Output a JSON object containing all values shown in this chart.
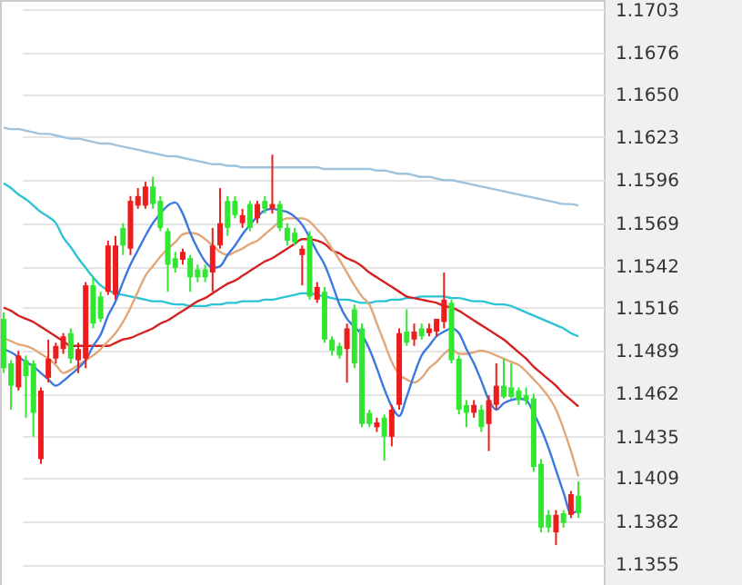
{
  "chart_data": {
    "type": "candlestick",
    "categories": [
      null,
      null,
      null,
      null,
      null,
      null,
      null,
      null,
      null,
      null,
      null,
      null,
      null,
      null,
      null,
      null,
      null,
      null,
      null,
      null,
      null,
      null,
      null,
      null,
      null,
      null,
      null,
      null,
      null,
      null,
      null,
      null,
      null,
      null,
      null,
      null,
      null,
      null,
      null,
      null,
      null,
      null,
      null,
      null,
      null,
      null,
      null,
      null,
      null,
      null,
      null,
      null,
      null,
      null,
      null,
      null,
      null,
      null,
      null,
      null,
      null,
      null,
      null,
      null,
      null,
      null,
      null,
      null,
      null,
      null,
      null,
      null,
      null,
      null,
      null,
      null,
      null,
      null
    ],
    "ohlc": [
      [
        1.1509,
        1.1513,
        1.1475,
        1.1478
      ],
      [
        1.1481,
        1.1483,
        1.1452,
        1.1467
      ],
      [
        1.1466,
        1.1489,
        1.1464,
        1.1486
      ],
      [
        1.1483,
        1.1486,
        1.1447,
        1.1473
      ],
      [
        1.1481,
        1.1483,
        1.1435,
        1.145
      ],
      [
        1.1421,
        1.1466,
        1.1418,
        1.1464
      ],
      [
        1.1472,
        1.1496,
        1.1469,
        1.1484
      ],
      [
        1.1484,
        1.1494,
        1.1481,
        1.1492
      ],
      [
        1.149,
        1.15,
        1.1487,
        1.1498
      ],
      [
        1.15,
        1.1503,
        1.1481,
        1.1484
      ],
      [
        1.1483,
        1.1494,
        1.1475,
        1.149
      ],
      [
        1.1484,
        1.1532,
        1.1478,
        1.153
      ],
      [
        1.153,
        1.1535,
        1.1503,
        1.1506
      ],
      [
        1.1523,
        1.1526,
        1.1507,
        1.1509
      ],
      [
        1.1526,
        1.1558,
        1.1524,
        1.1555
      ],
      [
        1.1524,
        1.1561,
        1.1521,
        1.1555
      ],
      [
        1.1566,
        1.1569,
        1.1549,
        1.1555
      ],
      [
        1.1553,
        1.1586,
        1.1549,
        1.1583
      ],
      [
        1.158,
        1.1591,
        1.1578,
        1.1586
      ],
      [
        1.158,
        1.1595,
        1.1578,
        1.1592
      ],
      [
        1.1592,
        1.1598,
        1.1578,
        1.1581
      ],
      [
        1.1583,
        1.1586,
        1.1564,
        1.1566
      ],
      [
        1.1564,
        1.1566,
        1.1526,
        1.1543
      ],
      [
        1.1547,
        1.1551,
        1.1538,
        1.1541
      ],
      [
        1.1546,
        1.1553,
        1.1543,
        1.1551
      ],
      [
        1.1547,
        1.1549,
        1.1526,
        1.1535
      ],
      [
        1.154,
        1.1543,
        1.1532,
        1.1535
      ],
      [
        1.154,
        1.1543,
        1.1532,
        1.1535
      ],
      [
        1.1538,
        1.1566,
        1.1526,
        1.1555
      ],
      [
        1.1555,
        1.1591,
        1.1553,
        1.1569
      ],
      [
        1.1583,
        1.1586,
        1.1561,
        1.1566
      ],
      [
        1.1583,
        1.1586,
        1.1572,
        1.1574
      ],
      [
        1.1569,
        1.1578,
        1.1566,
        1.1574
      ],
      [
        1.1581,
        1.1583,
        1.1564,
        1.1566
      ],
      [
        1.1572,
        1.1583,
        1.1569,
        1.1581
      ],
      [
        1.1583,
        1.1586,
        1.1575,
        1.1578
      ],
      [
        1.1578,
        1.1612,
        1.1575,
        1.1581
      ],
      [
        1.1581,
        1.1583,
        1.1564,
        1.1566
      ],
      [
        1.1566,
        1.1569,
        1.1555,
        1.1558
      ],
      [
        1.1563,
        1.1566,
        1.1555,
        1.1557
      ],
      [
        1.1549,
        1.1555,
        1.153,
        1.1553
      ],
      [
        1.1561,
        1.1564,
        1.1521,
        1.1523
      ],
      [
        1.1521,
        1.1532,
        1.1519,
        1.1529
      ],
      [
        1.1526,
        1.1529,
        1.1494,
        1.1496
      ],
      [
        1.1496,
        1.1498,
        1.1486,
        1.1489
      ],
      [
        1.1492,
        1.1494,
        1.1484,
        1.1486
      ],
      [
        1.149,
        1.1506,
        1.1469,
        1.1503
      ],
      [
        1.1515,
        1.1518,
        1.1478,
        1.1481
      ],
      [
        1.1503,
        1.1506,
        1.1441,
        1.1443
      ],
      [
        1.145,
        1.1452,
        1.1441,
        1.1443
      ],
      [
        1.1441,
        1.1447,
        1.1438,
        1.1444
      ],
      [
        1.1447,
        1.1449,
        1.142,
        1.1435
      ],
      [
        1.1435,
        1.1455,
        1.1429,
        1.1452
      ],
      [
        1.1455,
        1.1503,
        1.1452,
        1.15
      ],
      [
        1.1501,
        1.1515,
        1.1492,
        1.1494
      ],
      [
        1.1496,
        1.1506,
        1.1492,
        1.1501
      ],
      [
        1.1503,
        1.1506,
        1.1496,
        1.1498
      ],
      [
        1.15,
        1.1506,
        1.1498,
        1.1503
      ],
      [
        1.1501,
        1.1509,
        1.1498,
        1.1509
      ],
      [
        1.1507,
        1.1538,
        1.1503,
        1.1521
      ],
      [
        1.1519,
        1.1521,
        1.1481,
        1.1483
      ],
      [
        1.1484,
        1.1486,
        1.1449,
        1.1452
      ],
      [
        1.1455,
        1.1458,
        1.1441,
        1.145
      ],
      [
        1.145,
        1.1458,
        1.1447,
        1.1455
      ],
      [
        1.1452,
        1.1455,
        1.1438,
        1.1441
      ],
      [
        1.1443,
        1.1461,
        1.1426,
        1.1458
      ],
      [
        1.1455,
        1.1481,
        1.1452,
        1.1467
      ],
      [
        1.1467,
        1.1484,
        1.1459,
        1.146
      ],
      [
        1.1466,
        1.1481,
        1.1459,
        1.146
      ],
      [
        1.1464,
        1.1466,
        1.1455,
        1.1458
      ],
      [
        1.1461,
        1.1466,
        1.1455,
        1.1458
      ],
      [
        1.1459,
        1.1462,
        1.1413,
        1.1416
      ],
      [
        1.1418,
        1.1421,
        1.1375,
        1.1378
      ],
      [
        1.1386,
        1.1389,
        1.1375,
        1.1378
      ],
      [
        1.1375,
        1.1389,
        1.1367,
        1.1386
      ],
      [
        1.1387,
        1.1389,
        1.1378,
        1.1381
      ],
      [
        1.1386,
        1.1401,
        1.1384,
        1.1399
      ],
      [
        1.1398,
        1.1407,
        1.1384,
        1.1387
      ]
    ],
    "colors": [
      "#33e633",
      "#33e633",
      "#ee1c1c",
      "#33e633",
      "#33e633",
      "#ee1c1c",
      "#ee1c1c",
      "#ee1c1c",
      "#ee1c1c",
      "#33e633",
      "#ee1c1c",
      "#ee1c1c",
      "#33e633",
      "#33e633",
      "#ee1c1c",
      "#ee1c1c",
      "#33e633",
      "#ee1c1c",
      "#ee1c1c",
      "#ee1c1c",
      "#33e633",
      "#33e633",
      "#33e633",
      "#33e633",
      "#ee1c1c",
      "#33e633",
      "#33e633",
      "#33e633",
      "#ee1c1c",
      "#ee1c1c",
      "#33e633",
      "#33e633",
      "#ee1c1c",
      "#33e633",
      "#ee1c1c",
      "#33e633",
      "#ee1c1c",
      "#33e633",
      "#33e633",
      "#33e633",
      "#ee1c1c",
      "#33e633",
      "#ee1c1c",
      "#33e633",
      "#33e633",
      "#33e633",
      "#ee1c1c",
      "#33e633",
      "#33e633",
      "#33e633",
      "#ee1c1c",
      "#33e633",
      "#ee1c1c",
      "#ee1c1c",
      "#33e633",
      "#ee1c1c",
      "#33e633",
      "#ee1c1c",
      "#ee1c1c",
      "#ee1c1c",
      "#33e633",
      "#33e633",
      "#33e633",
      "#ee1c1c",
      "#33e633",
      "#ee1c1c",
      "#ee1c1c",
      "#33e633",
      "#33e633",
      "#33e633",
      "#33e633",
      "#33e633",
      "#33e633",
      "#33e633",
      "#ee1c1c",
      "#33e633",
      "#ee1c1c",
      "#33e633"
    ],
    "series": [
      {
        "type": "line",
        "color": "#9fc3dc",
        "values": [
          1.1629,
          1.1628,
          1.1628,
          1.1627,
          1.1626,
          1.1625,
          1.1625,
          1.1624,
          1.1623,
          1.1622,
          1.1622,
          1.1621,
          1.162,
          1.1619,
          1.1619,
          1.1618,
          1.1617,
          1.1616,
          1.1615,
          1.1614,
          1.1613,
          1.1612,
          1.1611,
          1.1611,
          1.161,
          1.1609,
          1.1608,
          1.1607,
          1.1606,
          1.1606,
          1.1605,
          1.1605,
          1.1604,
          1.1604,
          1.1604,
          1.1604,
          1.1604,
          1.1604,
          1.1604,
          1.1604,
          1.1604,
          1.1604,
          1.1604,
          1.1603,
          1.1603,
          1.1603,
          1.1603,
          1.1603,
          1.1603,
          1.1603,
          1.1602,
          1.1602,
          1.1601,
          1.16,
          1.16,
          1.1599,
          1.1598,
          1.1598,
          1.1597,
          1.1596,
          1.1596,
          1.1595,
          1.1594,
          1.1593,
          1.1592,
          1.1591,
          1.159,
          1.1589,
          1.1588,
          1.1587,
          1.1586,
          1.1585,
          1.1584,
          1.1583,
          1.1582,
          1.1581,
          1.1581,
          1.158
        ]
      },
      {
        "type": "line",
        "color": "#2cc3d3",
        "values": [
          1.1594,
          1.1591,
          1.1587,
          1.1584,
          1.158,
          1.1576,
          1.1573,
          1.1569,
          1.156,
          1.1554,
          1.1547,
          1.1541,
          1.1535,
          1.153,
          1.1527,
          1.1525,
          1.1524,
          1.1523,
          1.1522,
          1.1521,
          1.152,
          1.152,
          1.1519,
          1.1518,
          1.1518,
          1.1517,
          1.1517,
          1.1517,
          1.1518,
          1.1518,
          1.1519,
          1.1519,
          1.152,
          1.152,
          1.152,
          1.1521,
          1.1521,
          1.1522,
          1.1523,
          1.1524,
          1.1525,
          1.1525,
          1.1524,
          1.1523,
          1.1522,
          1.1521,
          1.1521,
          1.152,
          1.1519,
          1.1519,
          1.152,
          1.152,
          1.1521,
          1.1521,
          1.1522,
          1.1522,
          1.1523,
          1.1523,
          1.1523,
          1.1523,
          1.1522,
          1.1522,
          1.1521,
          1.152,
          1.152,
          1.1519,
          1.1518,
          1.1518,
          1.1517,
          1.1515,
          1.1513,
          1.1511,
          1.1509,
          1.1507,
          1.1505,
          1.1503,
          1.15,
          1.1498
        ]
      },
      {
        "type": "line",
        "color": "#d42222",
        "values": [
          1.1516,
          1.1514,
          1.1511,
          1.1509,
          1.1507,
          1.1504,
          1.1501,
          1.1498,
          1.1495,
          1.1492,
          1.1492,
          1.1492,
          1.1492,
          1.1492,
          1.1492,
          1.1494,
          1.1496,
          1.1497,
          1.1499,
          1.1501,
          1.1503,
          1.1506,
          1.1508,
          1.1511,
          1.1514,
          1.1517,
          1.152,
          1.1522,
          1.1525,
          1.1528,
          1.1531,
          1.1533,
          1.1536,
          1.1539,
          1.1542,
          1.1545,
          1.1547,
          1.155,
          1.1553,
          1.1556,
          1.1559,
          1.1559,
          1.1558,
          1.1556,
          1.1552,
          1.155,
          1.1547,
          1.1545,
          1.1542,
          1.1538,
          1.1535,
          1.1532,
          1.1529,
          1.1526,
          1.1523,
          1.1522,
          1.1521,
          1.152,
          1.1519,
          1.1517,
          1.1516,
          1.1514,
          1.1511,
          1.1508,
          1.1505,
          1.1502,
          1.1499,
          1.1496,
          1.1492,
          1.1488,
          1.1484,
          1.1479,
          1.1475,
          1.1471,
          1.1467,
          1.1462,
          1.1458,
          1.1454
        ]
      },
      {
        "type": "line",
        "color": "#e3a777",
        "values": [
          1.1497,
          1.1495,
          1.1493,
          1.1492,
          1.149,
          1.1487,
          1.1484,
          1.148,
          1.1475,
          1.1477,
          1.148,
          1.1483,
          1.1486,
          1.149,
          1.1495,
          1.15,
          1.1507,
          1.1516,
          1.1526,
          1.1536,
          1.1542,
          1.1548,
          1.1553,
          1.1557,
          1.1562,
          1.1563,
          1.1562,
          1.1559,
          1.1555,
          1.1551,
          1.1549,
          1.1551,
          1.1553,
          1.1556,
          1.1558,
          1.1562,
          1.1566,
          1.157,
          1.1572,
          1.1572,
          1.1572,
          1.157,
          1.1565,
          1.156,
          1.1553,
          1.1546,
          1.1538,
          1.153,
          1.1523,
          1.1518,
          1.1506,
          1.1494,
          1.1482,
          1.1474,
          1.1471,
          1.1469,
          1.1472,
          1.1478,
          1.1482,
          1.1487,
          1.149,
          1.1487,
          1.1487,
          1.1488,
          1.1489,
          1.1488,
          1.1486,
          1.1484,
          1.1482,
          1.148,
          1.1476,
          1.1471,
          1.1466,
          1.146,
          1.1452,
          1.144,
          1.1426,
          1.141
        ]
      },
      {
        "type": "line",
        "color": "#3b79e0",
        "values": [
          1.149,
          1.1488,
          1.1485,
          1.1482,
          1.1479,
          1.1475,
          1.1471,
          1.1467,
          1.147,
          1.1474,
          1.1478,
          1.1483,
          1.1492,
          1.1499,
          1.1511,
          1.152,
          1.1532,
          1.1543,
          1.1552,
          1.1561,
          1.1569,
          1.1575,
          1.158,
          1.1582,
          1.1575,
          1.1563,
          1.1553,
          1.1545,
          1.1541,
          1.1542,
          1.1549,
          1.1555,
          1.1562,
          1.1568,
          1.1573,
          1.1577,
          1.1578,
          1.1577,
          1.1576,
          1.1573,
          1.1568,
          1.156,
          1.1551,
          1.1543,
          1.1531,
          1.1518,
          1.1509,
          1.1504,
          1.1499,
          1.149,
          1.1478,
          1.1465,
          1.1454,
          1.1448,
          1.146,
          1.1474,
          1.1486,
          1.1492,
          1.1498,
          1.1501,
          1.1503,
          1.15,
          1.149,
          1.1481,
          1.147,
          1.1458,
          1.1452,
          1.1456,
          1.1458,
          1.1459,
          1.1458,
          1.145,
          1.144,
          1.1428,
          1.1414,
          1.14,
          1.1387,
          1.1389
        ]
      }
    ],
    "ylim": [
      1.1342,
      1.1709
    ],
    "yticks": [
      1.1703,
      1.1676,
      {
        "value": 1.165,
        "label": "1.1650"
      },
      1.1623,
      1.1596,
      1.1569,
      1.1542,
      1.1516,
      1.1489,
      1.1462,
      1.1435,
      1.1409,
      1.1382,
      1.1355
    ],
    "grid": "y",
    "tick_labels": "y"
  }
}
